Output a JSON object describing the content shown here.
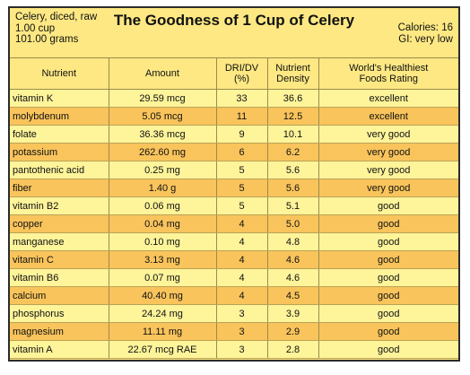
{
  "header": {
    "serving": [
      "Celery, diced, raw",
      "1.00 cup",
      "101.00 grams"
    ],
    "title": "The Goodness of 1 Cup of Celery",
    "calories": "Calories: 16",
    "gi": "GI: very low"
  },
  "columns": [
    [
      "Nutrient"
    ],
    [
      "Amount"
    ],
    [
      "DRI/DV",
      "(%)"
    ],
    [
      "Nutrient",
      "Density"
    ],
    [
      "World's Healthiest",
      "Foods Rating"
    ]
  ],
  "rows": [
    [
      "vitamin K",
      "29.59 mcg",
      "33",
      "36.6",
      "excellent"
    ],
    [
      "molybdenum",
      "5.05 mcg",
      "11",
      "12.5",
      "excellent"
    ],
    [
      "folate",
      "36.36 mcg",
      "9",
      "10.1",
      "very good"
    ],
    [
      "potassium",
      "262.60 mg",
      "6",
      "6.2",
      "very good"
    ],
    [
      "pantothenic acid",
      "0.25 mg",
      "5",
      "5.6",
      "very good"
    ],
    [
      "fiber",
      "1.40 g",
      "5",
      "5.6",
      "very good"
    ],
    [
      "vitamin B2",
      "0.06 mg",
      "5",
      "5.1",
      "good"
    ],
    [
      "copper",
      "0.04 mg",
      "4",
      "5.0",
      "good"
    ],
    [
      "manganese",
      "0.10 mg",
      "4",
      "4.8",
      "good"
    ],
    [
      "vitamin C",
      "3.13 mg",
      "4",
      "4.6",
      "good"
    ],
    [
      "vitamin B6",
      "0.07 mg",
      "4",
      "4.6",
      "good"
    ],
    [
      "calcium",
      "40.40 mg",
      "4",
      "4.5",
      "good"
    ],
    [
      "phosphorus",
      "24.24 mg",
      "3",
      "3.9",
      "good"
    ],
    [
      "magnesium",
      "11.11 mg",
      "3",
      "2.9",
      "good"
    ],
    [
      "vitamin A",
      "22.67 mcg RAE",
      "3",
      "2.8",
      "good"
    ]
  ],
  "colors": {
    "header_bg": "#fde883",
    "row_light": "#fef49a",
    "row_dark": "#f9c45c",
    "border": "#2b2b2b"
  }
}
